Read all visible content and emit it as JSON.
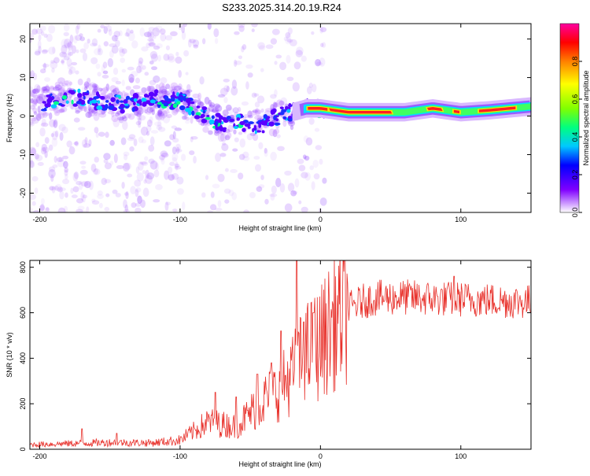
{
  "title": "S233.2025.314.20.19.R24",
  "chart_data": [
    {
      "type": "heatmap",
      "title": "S233.2025.314.20.19.R24",
      "xlabel": "Height of straight line (km)",
      "ylabel": "Frequency (Hz)",
      "xlim": [
        -207,
        150
      ],
      "ylim": [
        -25,
        24
      ],
      "xticks": [
        -200,
        -100,
        0,
        100
      ],
      "yticks": [
        -20,
        -10,
        0,
        10,
        20
      ],
      "colorbar": {
        "label": "Normalized spectral amplitude",
        "range": [
          0,
          1
        ],
        "ticks": [
          "0.0",
          "0.2",
          "0.4",
          "0.6",
          "0.8"
        ],
        "tick_values": [
          0,
          0.2,
          0.4,
          0.6,
          0.8
        ],
        "colors": [
          "#ffffff",
          "#8000ff",
          "#0000ff",
          "#00c8ff",
          "#00ff80",
          "#80ff00",
          "#ffff00",
          "#ff8000",
          "#ff0000",
          "#ff00a0"
        ]
      },
      "ridge": [
        [
          -200,
          3
        ],
        [
          -180,
          5
        ],
        [
          -160,
          4
        ],
        [
          -140,
          3
        ],
        [
          -120,
          5
        ],
        [
          -110,
          4
        ],
        [
          -100,
          4
        ],
        [
          -90,
          2
        ],
        [
          -80,
          0
        ],
        [
          -70,
          -2
        ],
        [
          -60,
          -1
        ],
        [
          -50,
          -3
        ],
        [
          -40,
          -2
        ],
        [
          -30,
          0
        ],
        [
          -20,
          1
        ],
        [
          -10,
          2
        ],
        [
          0,
          2
        ],
        [
          20,
          1
        ],
        [
          60,
          1
        ],
        [
          80,
          2
        ],
        [
          100,
          1
        ],
        [
          120,
          1.5
        ],
        [
          150,
          2.5
        ]
      ]
    },
    {
      "type": "line",
      "xlabel": "Height of straight line (km)",
      "ylabel": "SNR (10 * v/v)",
      "xlim": [
        -207,
        150
      ],
      "ylim": [
        0,
        830
      ],
      "xticks": [
        -200,
        -100,
        0,
        100
      ],
      "yticks": [
        0,
        200,
        400,
        600,
        800
      ],
      "color": "#e8302a",
      "envelope": [
        [
          -207,
          20
        ],
        [
          -180,
          25
        ],
        [
          -150,
          30
        ],
        [
          -120,
          28
        ],
        [
          -100,
          40
        ],
        [
          -90,
          80
        ],
        [
          -80,
          120
        ],
        [
          -70,
          110
        ],
        [
          -60,
          100
        ],
        [
          -50,
          160
        ],
        [
          -40,
          220
        ],
        [
          -30,
          260
        ],
        [
          -20,
          330
        ],
        [
          -15,
          380
        ],
        [
          -10,
          420
        ],
        [
          0,
          470
        ],
        [
          10,
          560
        ],
        [
          20,
          620
        ],
        [
          30,
          650
        ],
        [
          40,
          665
        ],
        [
          60,
          668
        ],
        [
          80,
          662
        ],
        [
          100,
          660
        ],
        [
          120,
          655
        ],
        [
          140,
          650
        ],
        [
          150,
          648
        ]
      ],
      "spikes": [
        [
          -170,
          90
        ],
        [
          -145,
          70
        ],
        [
          -75,
          250
        ],
        [
          -60,
          230
        ],
        [
          -45,
          330
        ],
        [
          -35,
          380
        ],
        [
          -28,
          520
        ],
        [
          -17,
          830
        ],
        [
          -12,
          560
        ],
        [
          -5,
          600
        ],
        [
          95,
          760
        ]
      ]
    }
  ]
}
